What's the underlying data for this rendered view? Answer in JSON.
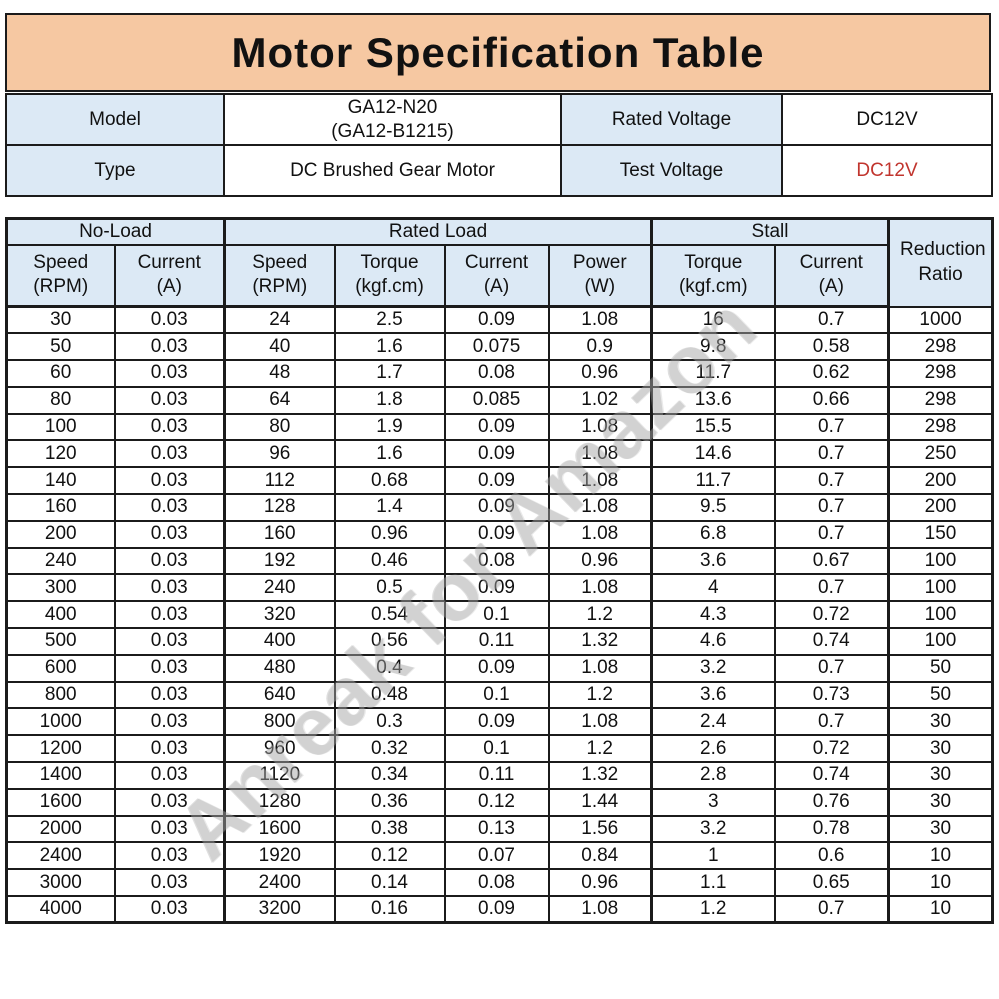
{
  "title": "Motor Specification Table",
  "watermark": "Anreak for Amazon",
  "colors": {
    "title_bg": "#f6c8a2",
    "header_bg": "#dce9f5",
    "accent_red": "#c1352e",
    "border": "#1b1b1b"
  },
  "info": {
    "model_label": "Model",
    "model_value_line1": "GA12-N20",
    "model_value_line2": "(GA12-B1215)",
    "rated_voltage_label": "Rated Voltage",
    "rated_voltage_value": "DC12V",
    "type_label": "Type",
    "type_value": "DC Brushed Gear Motor",
    "test_voltage_label": "Test Voltage",
    "test_voltage_value": "DC12V"
  },
  "spec_table": {
    "group_headers": [
      "No-Load",
      "Rated Load",
      "Stall"
    ],
    "reduction_ratio_header": "Reduction Ratio",
    "column_headers": [
      [
        "Speed",
        "(RPM)"
      ],
      [
        "Current",
        "(A)"
      ],
      [
        "Speed",
        "(RPM)"
      ],
      [
        "Torque",
        "(kgf.cm)"
      ],
      [
        "Current",
        "(A)"
      ],
      [
        "Power",
        "(W)"
      ],
      [
        "Torque",
        "(kgf.cm)"
      ],
      [
        "Current",
        "(A)"
      ]
    ],
    "rows": [
      [
        "30",
        "0.03",
        "24",
        "2.5",
        "0.09",
        "1.08",
        "16",
        "0.7",
        "1000"
      ],
      [
        "50",
        "0.03",
        "40",
        "1.6",
        "0.075",
        "0.9",
        "9.8",
        "0.58",
        "298"
      ],
      [
        "60",
        "0.03",
        "48",
        "1.7",
        "0.08",
        "0.96",
        "11.7",
        "0.62",
        "298"
      ],
      [
        "80",
        "0.03",
        "64",
        "1.8",
        "0.085",
        "1.02",
        "13.6",
        "0.66",
        "298"
      ],
      [
        "100",
        "0.03",
        "80",
        "1.9",
        "0.09",
        "1.08",
        "15.5",
        "0.7",
        "298"
      ],
      [
        "120",
        "0.03",
        "96",
        "1.6",
        "0.09",
        "1.08",
        "14.6",
        "0.7",
        "250"
      ],
      [
        "140",
        "0.03",
        "112",
        "0.68",
        "0.09",
        "1.08",
        "11.7",
        "0.7",
        "200"
      ],
      [
        "160",
        "0.03",
        "128",
        "1.4",
        "0.09",
        "1.08",
        "9.5",
        "0.7",
        "200"
      ],
      [
        "200",
        "0.03",
        "160",
        "0.96",
        "0.09",
        "1.08",
        "6.8",
        "0.7",
        "150"
      ],
      [
        "240",
        "0.03",
        "192",
        "0.46",
        "0.08",
        "0.96",
        "3.6",
        "0.67",
        "100"
      ],
      [
        "300",
        "0.03",
        "240",
        "0.5",
        "0.09",
        "1.08",
        "4",
        "0.7",
        "100"
      ],
      [
        "400",
        "0.03",
        "320",
        "0.54",
        "0.1",
        "1.2",
        "4.3",
        "0.72",
        "100"
      ],
      [
        "500",
        "0.03",
        "400",
        "0.56",
        "0.11",
        "1.32",
        "4.6",
        "0.74",
        "100"
      ],
      [
        "600",
        "0.03",
        "480",
        "0.4",
        "0.09",
        "1.08",
        "3.2",
        "0.7",
        "50"
      ],
      [
        "800",
        "0.03",
        "640",
        "0.48",
        "0.1",
        "1.2",
        "3.6",
        "0.73",
        "50"
      ],
      [
        "1000",
        "0.03",
        "800",
        "0.3",
        "0.09",
        "1.08",
        "2.4",
        "0.7",
        "30"
      ],
      [
        "1200",
        "0.03",
        "960",
        "0.32",
        "0.1",
        "1.2",
        "2.6",
        "0.72",
        "30"
      ],
      [
        "1400",
        "0.03",
        "1120",
        "0.34",
        "0.11",
        "1.32",
        "2.8",
        "0.74",
        "30"
      ],
      [
        "1600",
        "0.03",
        "1280",
        "0.36",
        "0.12",
        "1.44",
        "3",
        "0.76",
        "30"
      ],
      [
        "2000",
        "0.03",
        "1600",
        "0.38",
        "0.13",
        "1.56",
        "3.2",
        "0.78",
        "30"
      ],
      [
        "2400",
        "0.03",
        "1920",
        "0.12",
        "0.07",
        "0.84",
        "1",
        "0.6",
        "10"
      ],
      [
        "3000",
        "0.03",
        "2400",
        "0.14",
        "0.08",
        "0.96",
        "1.1",
        "0.65",
        "10"
      ],
      [
        "4000",
        "0.03",
        "3200",
        "0.16",
        "0.09",
        "1.08",
        "1.2",
        "0.7",
        "10"
      ]
    ]
  }
}
